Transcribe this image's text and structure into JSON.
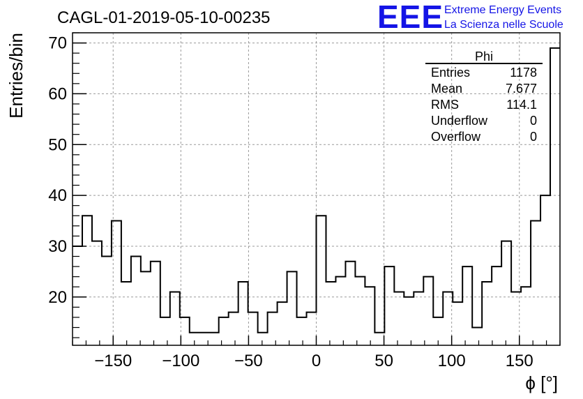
{
  "header": {
    "title": "CAGL-01-2019-05-10-00235",
    "logo_text": "EEE",
    "logo_line1": "Extreme Energy Events",
    "logo_line2": "La Scienza nelle Scuole",
    "logo_color": "#1414e6"
  },
  "stats_box": {
    "title": "Phi",
    "rows": [
      {
        "label": "Entries",
        "value": "1178"
      },
      {
        "label": "Mean",
        "value": "7.677"
      },
      {
        "label": "RMS",
        "value": "114.1"
      },
      {
        "label": "Underflow",
        "value": "0"
      },
      {
        "label": "Overflow",
        "value": "0"
      }
    ]
  },
  "chart_data": {
    "type": "histogram",
    "xlabel": "ϕ [°]",
    "ylabel": "Entries/bin",
    "xlim": [
      -180,
      180
    ],
    "ylim": [
      10.5,
      72
    ],
    "grid": true,
    "bin_width": 7.2,
    "x_ticks": [
      -150,
      -100,
      -50,
      0,
      50,
      100,
      150
    ],
    "y_ticks": [
      20,
      30,
      40,
      50,
      60,
      70
    ],
    "values": [
      30,
      36,
      31,
      28,
      35,
      23,
      28,
      25,
      27,
      16,
      21,
      16,
      13,
      13,
      13,
      16,
      17,
      23,
      17,
      13,
      17,
      19,
      25,
      16,
      17,
      36,
      23,
      24,
      27,
      24,
      22,
      13,
      26,
      21,
      20,
      21,
      24,
      16,
      21,
      19,
      26,
      14,
      23,
      26,
      31,
      21,
      22,
      35,
      40,
      69
    ]
  }
}
